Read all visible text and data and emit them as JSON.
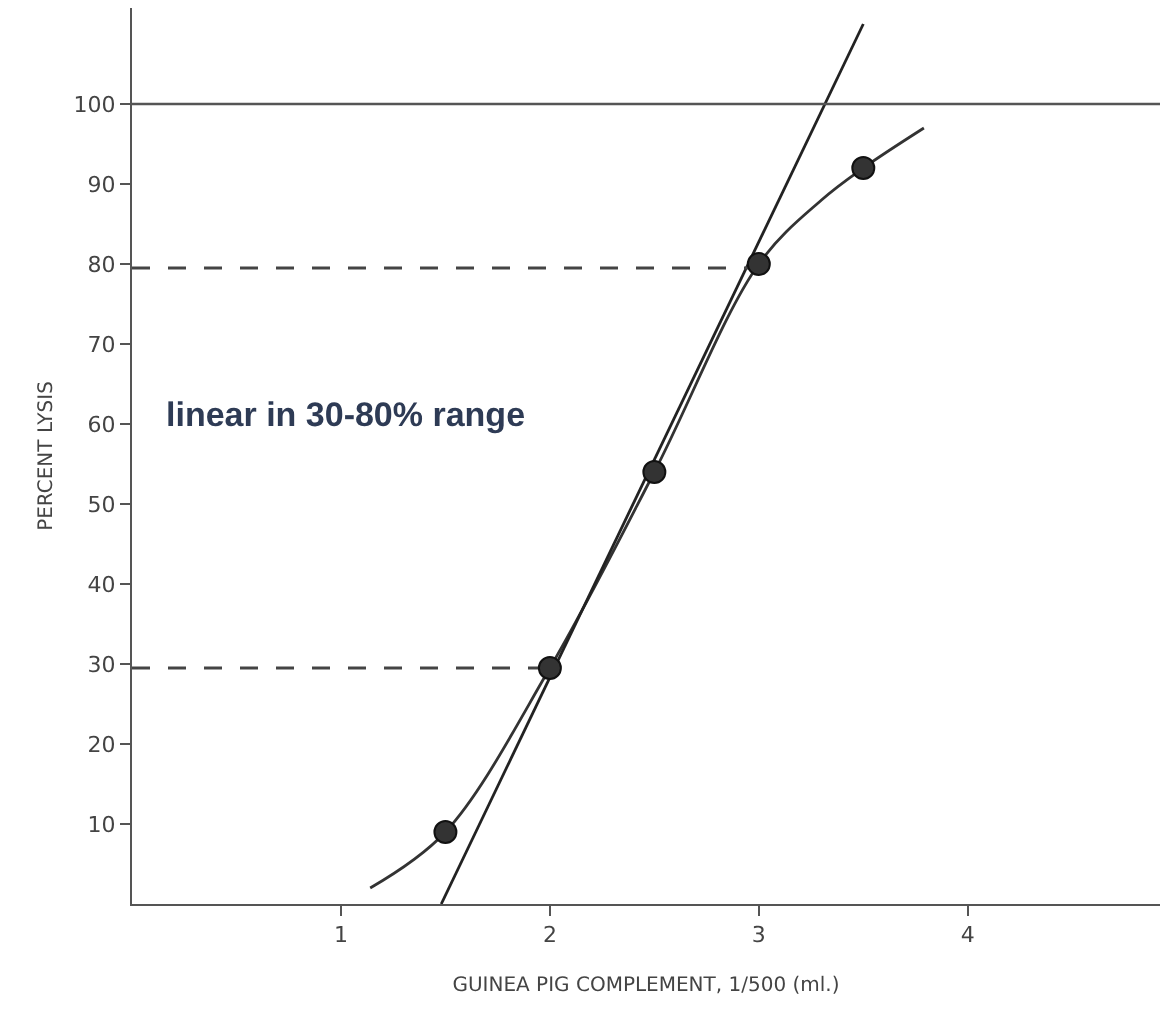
{
  "chart_data": {
    "type": "scatter",
    "xlabel": "GUINEA PIG COMPLEMENT, 1/500 (ml.)",
    "ylabel": "PERCENT LYSIS",
    "annotations": [
      "linear in 30-80% range"
    ],
    "xlim": [
      0,
      4.92
    ],
    "ylim": [
      0,
      112
    ],
    "xticks": [
      1,
      2,
      3,
      4
    ],
    "yticks": [
      10,
      20,
      30,
      40,
      50,
      60,
      70,
      80,
      90,
      100
    ],
    "marker": "circle",
    "ref_lines": [
      {
        "axis": "y",
        "value": 100,
        "color": "#555555",
        "line_style": "solid"
      }
    ],
    "series": [
      {
        "type": "line",
        "color": "#333333",
        "line_style": "solid",
        "marker": "none",
        "x": [
          1.14,
          1.5,
          2,
          2.5,
          3,
          3.3,
          3.5,
          3.79
        ],
        "values": [
          2,
          9,
          29.5,
          54,
          80,
          88,
          92,
          97
        ]
      },
      {
        "type": "line",
        "color": "#222222",
        "line_style": "solid",
        "marker": "none",
        "x": [
          1.48,
          3.5
        ],
        "values": [
          0,
          110
        ]
      },
      {
        "type": "line",
        "color": "#444444",
        "line_style": "dashed",
        "marker": "none",
        "x": [
          0,
          3
        ],
        "values": [
          79.5,
          79.5
        ]
      },
      {
        "type": "line",
        "color": "#444444",
        "line_style": "dashed",
        "marker": "none",
        "x": [
          0,
          2
        ],
        "values": [
          29.5,
          29.5
        ]
      },
      {
        "color": "#333333",
        "x": [
          1.5,
          2,
          2.5,
          3,
          3.5
        ],
        "values": [
          9,
          29.5,
          54,
          80,
          92
        ]
      }
    ]
  }
}
